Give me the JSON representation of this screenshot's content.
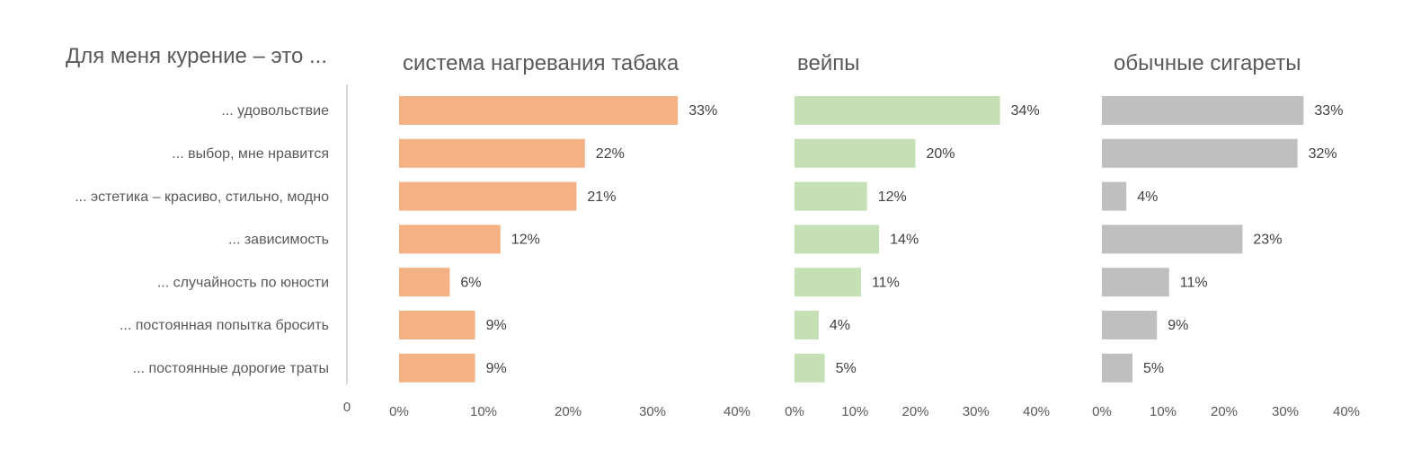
{
  "chart_data": {
    "type": "bar",
    "orientation": "horizontal",
    "title": "Для меня курение – это ...",
    "categories": [
      "... удовольствие",
      "...  выбор, мне нравится",
      "... эстетика – красиво, стильно, модно",
      "...  зависимость",
      "... случайность по юности",
      "... постоянная попытка бросить",
      "... постоянные дорогие траты"
    ],
    "category_axis_zero_label": "0",
    "xlim": [
      0,
      40
    ],
    "ticks": [
      "0%",
      "10%",
      "20%",
      "30%",
      "40%"
    ],
    "grid": false,
    "panels": [
      {
        "name": "система нагревания табака",
        "color": "#F4B183",
        "values": [
          33,
          22,
          21,
          12,
          6,
          9,
          9
        ],
        "labels": [
          "33%",
          "22%",
          "21%",
          "12%",
          "6%",
          "9%",
          "9%"
        ]
      },
      {
        "name": "вейпы",
        "color": "#C5E0B4",
        "values": [
          34,
          20,
          12,
          14,
          11,
          4,
          5
        ],
        "labels": [
          "34%",
          "20%",
          "12%",
          "14%",
          "11%",
          "4%",
          "5%"
        ]
      },
      {
        "name": "обычные сигареты",
        "color": "#BFBFBF",
        "values": [
          33,
          32,
          4,
          23,
          11,
          9,
          5
        ],
        "labels": [
          "33%",
          "32%",
          "4%",
          "23%",
          "11%",
          "9%",
          "5%"
        ]
      }
    ]
  }
}
